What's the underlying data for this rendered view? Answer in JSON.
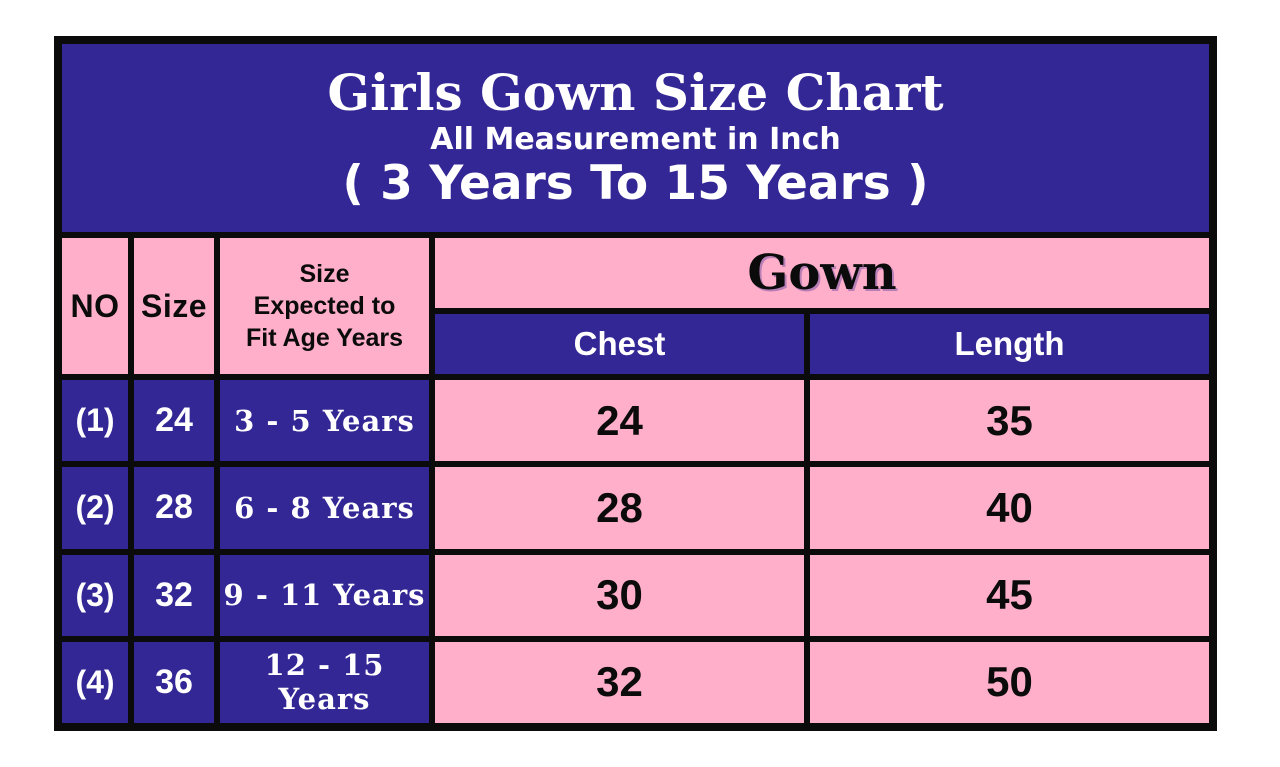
{
  "banner": {
    "title": "Girls Gown Size Chart",
    "subtitle": "All Measurement in Inch",
    "range": "( 3 Years To 15 Years )"
  },
  "columns": {
    "no": "NO",
    "size": "Size",
    "age_lines": [
      "Size",
      "Expected to",
      "Fit Age Years"
    ],
    "group": "Gown",
    "chest": "Chest",
    "length": "Length"
  },
  "rows": [
    {
      "no": "(1)",
      "size": "24",
      "age": "3 - 5 Years",
      "chest": "24",
      "length": "35"
    },
    {
      "no": "(2)",
      "size": "28",
      "age": "6 - 8 Years",
      "chest": "28",
      "length": "40"
    },
    {
      "no": "(3)",
      "size": "32",
      "age": "9 - 11 Years",
      "chest": "30",
      "length": "45"
    },
    {
      "no": "(4)",
      "size": "36",
      "age": "12 - 15 Years",
      "chest": "32",
      "length": "50"
    }
  ],
  "colors": {
    "blue": "#332695",
    "pink": "#FFAFC9",
    "border": "#0b0b0b",
    "text_light": "#FFFFFF",
    "text_dark": "#0b0b0b"
  },
  "chart_data": {
    "type": "table",
    "title": "Girls Gown Size Chart",
    "subtitle": "All Measurement in Inch",
    "range_note": "( 3 Years To 15 Years )",
    "units": "inch",
    "columns": [
      "NO",
      "Size",
      "Size Expected to Fit Age Years",
      "Gown Chest",
      "Gown Length"
    ],
    "rows": [
      [
        "(1)",
        24,
        "3 - 5 Years",
        24,
        35
      ],
      [
        "(2)",
        28,
        "6 - 8 Years",
        28,
        40
      ],
      [
        "(3)",
        32,
        "9 - 11 Years",
        30,
        45
      ],
      [
        "(4)",
        36,
        "12 - 15 Years",
        32,
        50
      ]
    ]
  }
}
